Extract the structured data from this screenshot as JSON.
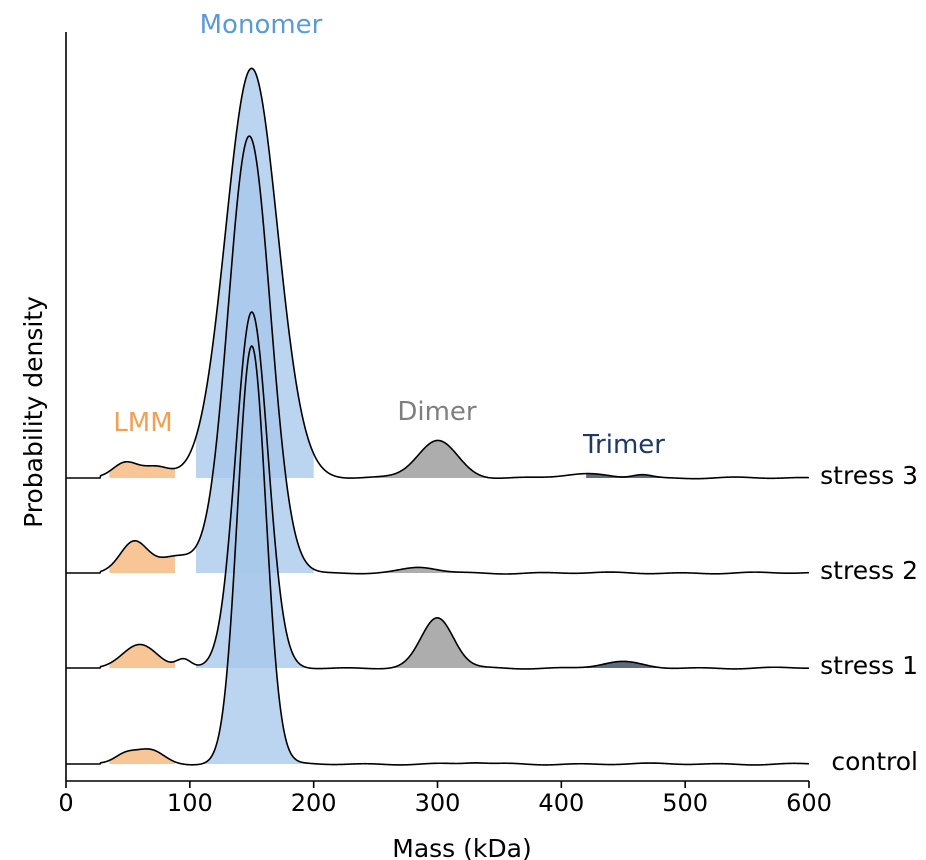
{
  "chart_data": {
    "type": "ridgeline",
    "xlabel": "Mass (kDa)",
    "ylabel": "Probability density",
    "xlim": [
      0,
      600
    ],
    "xticks": [
      0,
      100,
      200,
      300,
      400,
      500,
      600
    ],
    "grid": false,
    "legend": "none",
    "regions": [
      {
        "name": "LMM",
        "range": [
          35,
          88
        ],
        "color": "#f7c18d",
        "label_color": "#f0a050"
      },
      {
        "name": "Monomer",
        "range": [
          105,
          200
        ],
        "color": "#a8c8ea",
        "label_color": "#5b9bd5"
      },
      {
        "name": "Dimer",
        "range": [
          250,
          340
        ],
        "color": "#a6a6a6",
        "label_color": "#7f7f7f"
      },
      {
        "name": "Trimer",
        "range": [
          420,
          480
        ],
        "color": "#4f5d75",
        "label_color": "#1f3864"
      }
    ],
    "series": [
      {
        "name": "control",
        "peaks": [
          {
            "center": 48,
            "sigma": 9,
            "height": 0.11
          },
          {
            "center": 68,
            "sigma": 11,
            "height": 0.15
          },
          {
            "center": 150,
            "sigma": 11.5,
            "height": 4.7
          },
          {
            "center": 330,
            "sigma": 8,
            "height": 0.015
          }
        ]
      },
      {
        "name": "stress 1",
        "peaks": [
          {
            "center": 60,
            "sigma": 14,
            "height": 0.26
          },
          {
            "center": 95,
            "sigma": 6,
            "height": 0.1
          },
          {
            "center": 150,
            "sigma": 13,
            "height": 4.0
          },
          {
            "center": 300,
            "sigma": 13,
            "height": 0.56
          },
          {
            "center": 448,
            "sigma": 16,
            "height": 0.065
          }
        ]
      },
      {
        "name": "stress 2",
        "peaks": [
          {
            "center": 55,
            "sigma": 11,
            "height": 0.35
          },
          {
            "center": 88,
            "sigma": 15,
            "height": 0.18
          },
          {
            "center": 148,
            "sigma": 17,
            "height": 4.9
          },
          {
            "center": 287,
            "sigma": 14,
            "height": 0.06
          }
        ]
      },
      {
        "name": "stress 3",
        "peaks": [
          {
            "center": 48,
            "sigma": 10,
            "height": 0.18
          },
          {
            "center": 72,
            "sigma": 11,
            "height": 0.12
          },
          {
            "center": 150,
            "sigma": 21,
            "height": 4.6
          },
          {
            "center": 300,
            "sigma": 16,
            "height": 0.42
          },
          {
            "center": 420,
            "sigma": 20,
            "height": 0.04
          },
          {
            "center": 465,
            "sigma": 8,
            "height": 0.04
          }
        ]
      }
    ]
  }
}
